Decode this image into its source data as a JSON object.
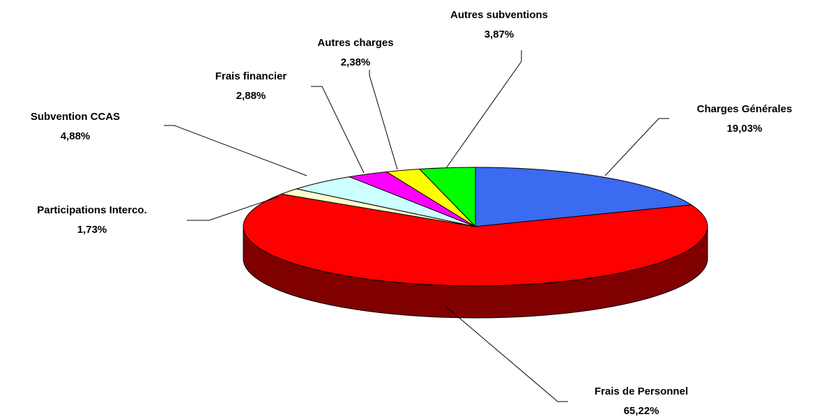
{
  "chart_data": {
    "type": "pie",
    "categories": [
      "Charges Générales",
      "Frais de Personnel",
      "Participations Interco.",
      "Subvention CCAS",
      "Frais financier",
      "Autres charges",
      "Autres subventions"
    ],
    "values": [
      19.03,
      65.22,
      1.73,
      4.88,
      2.88,
      2.38,
      3.87
    ],
    "value_labels": [
      "19,03%",
      "65,22%",
      "1,73%",
      "4,88%",
      "2,88%",
      "2,38%",
      "3,87%"
    ],
    "colors": [
      "#3a6bf0",
      "#ff0000",
      "#ffffcc",
      "#ccffff",
      "#ff00ff",
      "#ffff00",
      "#00ff00"
    ]
  }
}
